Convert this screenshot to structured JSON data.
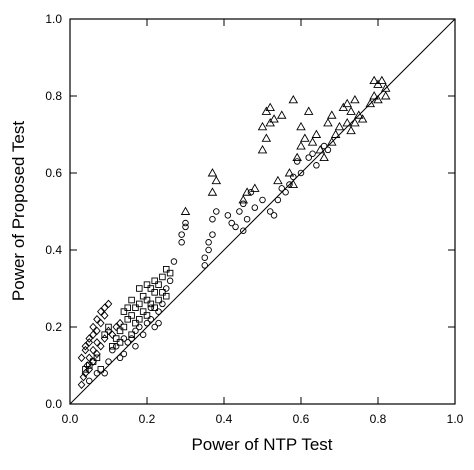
{
  "chart_data": {
    "type": "scatter",
    "title": "",
    "xlabel": "Power of NTP Test",
    "ylabel": "Power of Proposed Test",
    "xlim": [
      0,
      1
    ],
    "ylim": [
      0,
      1
    ],
    "xticks": [
      "0.0",
      "0.2",
      "0.4",
      "0.6",
      "0.8",
      "1.0"
    ],
    "yticks": [
      "0.0",
      "0.2",
      "0.4",
      "0.6",
      "0.8",
      "1.0"
    ],
    "grid": false,
    "legend": "none",
    "reference_line": {
      "from": [
        0,
        0
      ],
      "to": [
        1,
        1
      ]
    },
    "series": [
      {
        "marker": "diamond",
        "points": [
          [
            0.03,
            0.05
          ],
          [
            0.035,
            0.07
          ],
          [
            0.04,
            0.08
          ],
          [
            0.045,
            0.1
          ],
          [
            0.05,
            0.12
          ],
          [
            0.04,
            0.14
          ],
          [
            0.05,
            0.16
          ],
          [
            0.06,
            0.18
          ],
          [
            0.07,
            0.19
          ],
          [
            0.06,
            0.2
          ],
          [
            0.07,
            0.22
          ],
          [
            0.08,
            0.24
          ],
          [
            0.09,
            0.25
          ],
          [
            0.1,
            0.26
          ],
          [
            0.05,
            0.09
          ],
          [
            0.06,
            0.11
          ],
          [
            0.07,
            0.13
          ],
          [
            0.08,
            0.15
          ],
          [
            0.09,
            0.17
          ],
          [
            0.1,
            0.19
          ],
          [
            0.04,
            0.15
          ],
          [
            0.05,
            0.17
          ],
          [
            0.03,
            0.12
          ],
          [
            0.08,
            0.21
          ],
          [
            0.09,
            0.23
          ],
          [
            0.11,
            0.18
          ],
          [
            0.12,
            0.2
          ],
          [
            0.13,
            0.21
          ],
          [
            0.06,
            0.14
          ],
          [
            0.07,
            0.16
          ]
        ]
      },
      {
        "marker": "square",
        "points": [
          [
            0.04,
            0.09
          ],
          [
            0.05,
            0.1
          ],
          [
            0.06,
            0.11
          ],
          [
            0.07,
            0.12
          ],
          [
            0.08,
            0.09
          ],
          [
            0.09,
            0.18
          ],
          [
            0.1,
            0.2
          ],
          [
            0.12,
            0.17
          ],
          [
            0.13,
            0.19
          ],
          [
            0.14,
            0.2
          ],
          [
            0.15,
            0.22
          ],
          [
            0.16,
            0.23
          ],
          [
            0.17,
            0.25
          ],
          [
            0.18,
            0.26
          ],
          [
            0.19,
            0.28
          ],
          [
            0.2,
            0.27
          ],
          [
            0.21,
            0.3
          ],
          [
            0.22,
            0.29
          ],
          [
            0.23,
            0.31
          ],
          [
            0.24,
            0.33
          ],
          [
            0.25,
            0.35
          ],
          [
            0.26,
            0.34
          ],
          [
            0.15,
            0.25
          ],
          [
            0.16,
            0.27
          ],
          [
            0.17,
            0.21
          ],
          [
            0.18,
            0.22
          ],
          [
            0.19,
            0.24
          ],
          [
            0.2,
            0.23
          ],
          [
            0.21,
            0.26
          ],
          [
            0.22,
            0.25
          ],
          [
            0.23,
            0.27
          ],
          [
            0.14,
            0.24
          ],
          [
            0.13,
            0.16
          ],
          [
            0.24,
            0.29
          ],
          [
            0.2,
            0.31
          ],
          [
            0.22,
            0.32
          ],
          [
            0.18,
            0.3
          ],
          [
            0.16,
            0.18
          ],
          [
            0.11,
            0.15
          ],
          [
            0.25,
            0.28
          ]
        ]
      },
      {
        "marker": "circle",
        "points": [
          [
            0.05,
            0.06
          ],
          [
            0.07,
            0.08
          ],
          [
            0.09,
            0.08
          ],
          [
            0.11,
            0.14
          ],
          [
            0.12,
            0.15
          ],
          [
            0.13,
            0.12
          ],
          [
            0.14,
            0.13
          ],
          [
            0.15,
            0.16
          ],
          [
            0.16,
            0.17
          ],
          [
            0.17,
            0.19
          ],
          [
            0.18,
            0.2
          ],
          [
            0.19,
            0.18
          ],
          [
            0.2,
            0.21
          ],
          [
            0.21,
            0.22
          ],
          [
            0.22,
            0.2
          ],
          [
            0.23,
            0.24
          ],
          [
            0.24,
            0.26
          ],
          [
            0.25,
            0.3
          ],
          [
            0.26,
            0.32
          ],
          [
            0.27,
            0.37
          ],
          [
            0.29,
            0.42
          ],
          [
            0.29,
            0.44
          ],
          [
            0.3,
            0.46
          ],
          [
            0.3,
            0.47
          ],
          [
            0.35,
            0.36
          ],
          [
            0.35,
            0.38
          ],
          [
            0.36,
            0.4
          ],
          [
            0.36,
            0.42
          ],
          [
            0.37,
            0.44
          ],
          [
            0.37,
            0.48
          ],
          [
            0.38,
            0.5
          ],
          [
            0.41,
            0.49
          ],
          [
            0.42,
            0.47
          ],
          [
            0.43,
            0.46
          ],
          [
            0.44,
            0.5
          ],
          [
            0.45,
            0.52
          ],
          [
            0.46,
            0.48
          ],
          [
            0.45,
            0.45
          ],
          [
            0.47,
            0.55
          ],
          [
            0.48,
            0.51
          ],
          [
            0.5,
            0.53
          ],
          [
            0.52,
            0.5
          ],
          [
            0.53,
            0.49
          ],
          [
            0.54,
            0.53
          ],
          [
            0.55,
            0.56
          ],
          [
            0.56,
            0.55
          ],
          [
            0.57,
            0.57
          ],
          [
            0.58,
            0.59
          ],
          [
            0.59,
            0.63
          ],
          [
            0.6,
            0.6
          ],
          [
            0.62,
            0.64
          ],
          [
            0.63,
            0.65
          ],
          [
            0.64,
            0.62
          ],
          [
            0.66,
            0.67
          ],
          [
            0.67,
            0.66
          ],
          [
            0.14,
            0.17
          ],
          [
            0.17,
            0.15
          ],
          [
            0.21,
            0.25
          ],
          [
            0.23,
            0.21
          ],
          [
            0.1,
            0.11
          ]
        ]
      },
      {
        "marker": "triangle",
        "points": [
          [
            0.3,
            0.5
          ],
          [
            0.37,
            0.55
          ],
          [
            0.37,
            0.6
          ],
          [
            0.38,
            0.58
          ],
          [
            0.45,
            0.53
          ],
          [
            0.46,
            0.55
          ],
          [
            0.48,
            0.56
          ],
          [
            0.5,
            0.66
          ],
          [
            0.51,
            0.69
          ],
          [
            0.52,
            0.73
          ],
          [
            0.51,
            0.76
          ],
          [
            0.52,
            0.77
          ],
          [
            0.5,
            0.72
          ],
          [
            0.53,
            0.74
          ],
          [
            0.55,
            0.75
          ],
          [
            0.57,
            0.6
          ],
          [
            0.58,
            0.57
          ],
          [
            0.59,
            0.64
          ],
          [
            0.6,
            0.72
          ],
          [
            0.62,
            0.76
          ],
          [
            0.63,
            0.68
          ],
          [
            0.64,
            0.7
          ],
          [
            0.65,
            0.66
          ],
          [
            0.66,
            0.64
          ],
          [
            0.67,
            0.73
          ],
          [
            0.68,
            0.75
          ],
          [
            0.69,
            0.7
          ],
          [
            0.7,
            0.72
          ],
          [
            0.71,
            0.77
          ],
          [
            0.72,
            0.78
          ],
          [
            0.73,
            0.76
          ],
          [
            0.74,
            0.79
          ],
          [
            0.75,
            0.75
          ],
          [
            0.72,
            0.73
          ],
          [
            0.73,
            0.71
          ],
          [
            0.76,
            0.74
          ],
          [
            0.78,
            0.78
          ],
          [
            0.79,
            0.8
          ],
          [
            0.8,
            0.83
          ],
          [
            0.81,
            0.84
          ],
          [
            0.82,
            0.82
          ],
          [
            0.79,
            0.84
          ],
          [
            0.8,
            0.79
          ],
          [
            0.82,
            0.8
          ],
          [
            0.58,
            0.79
          ],
          [
            0.61,
            0.69
          ],
          [
            0.6,
            0.67
          ],
          [
            0.54,
            0.58
          ],
          [
            0.74,
            0.73
          ],
          [
            0.68,
            0.68
          ]
        ]
      }
    ]
  }
}
